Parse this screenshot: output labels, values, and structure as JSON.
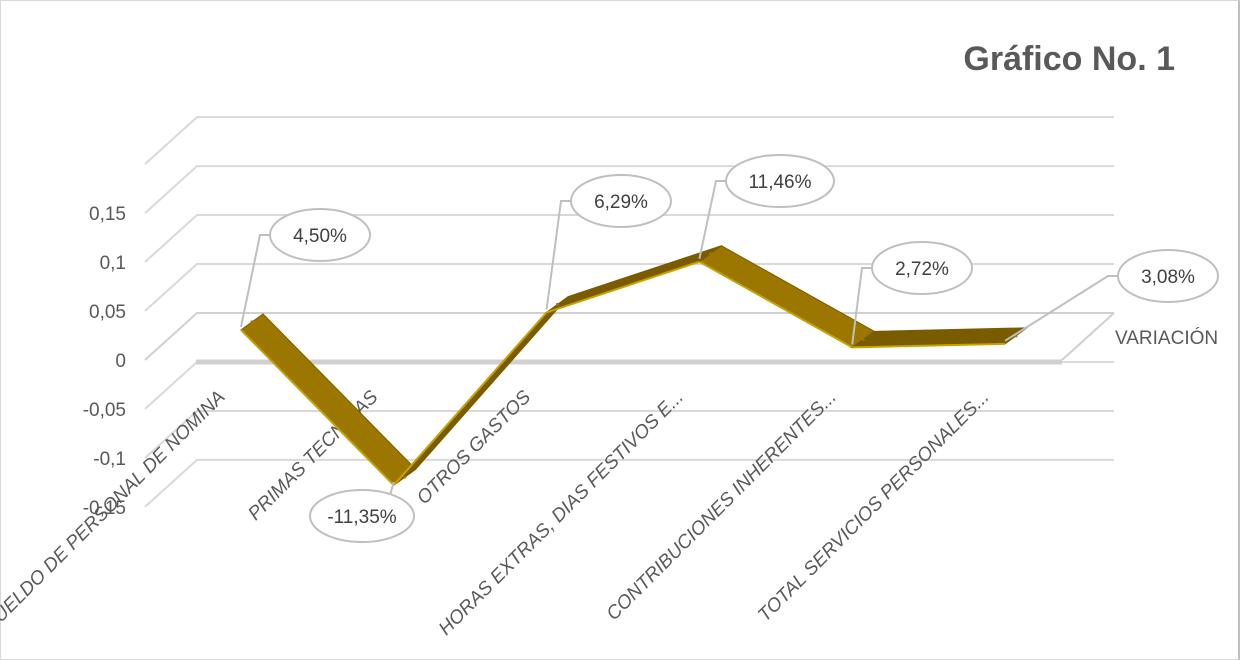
{
  "chart_data": {
    "type": "line",
    "title": "Gráfico No. 1",
    "categories": [
      "SUELDO DE PERSONAL DE NOMINA",
      "PRIMAS TECNICAS",
      "OTROS GASTOS",
      "HORAS EXTRAS, DIAS FESTIVOS E...",
      "CONTRIBUCIONES INHERENTES...",
      "TOTAL SERVICIOS PERSONALES..."
    ],
    "series": [
      {
        "name": "VARIACIÓN",
        "values": [
          0.045,
          -0.1135,
          0.0629,
          0.1146,
          0.0272,
          0.0308
        ]
      }
    ],
    "data_labels": [
      "4,50%",
      "-11,35%",
      "6,29%",
      "11,46%",
      "2,72%",
      "3,08%"
    ],
    "y_ticks": [
      "-0,15",
      "-0,1",
      "-0,05",
      "0",
      "0,05",
      "0,1",
      "0,15"
    ],
    "ylim": [
      -0.15,
      0.15
    ],
    "grid": true,
    "legend": "right",
    "style": "3d-line",
    "colors": {
      "ribbon": "#9c7700",
      "ribbon_top": "#c9a200",
      "ribbon_dark": "#7a5c00",
      "grid": "#d9d9d9",
      "axis": "#d0d0d0",
      "text": "#595959"
    }
  }
}
